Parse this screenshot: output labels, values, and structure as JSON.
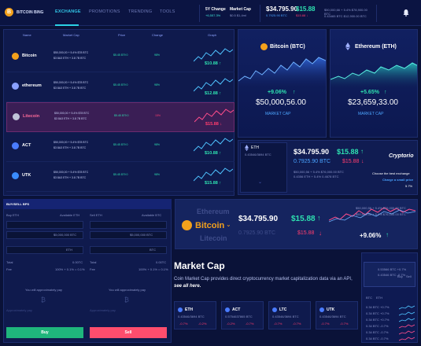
{
  "brand": {
    "name": "BITCOIN BING"
  },
  "nav": [
    "EXCHANGE",
    "PROMOTIONS",
    "TRENDING",
    "TOOLS"
  ],
  "ticker": {
    "change_label": "5Y Change",
    "change_value": "+6,557.3%",
    "mcap_label": "Market Cap",
    "mcap_value": "$0.5 $1,4ml",
    "t1_price": "$34.795.90",
    "t1_sub": "0.7925.90 BTC",
    "t2_price": "$15.88",
    "t2_arrow": "↑",
    "t2_sub": "$15.88 ↓",
    "t3_sub": "$50,000,66 + 5.4% $78,900.00 BTC",
    "t4_sub": "0.43465 BTC $12,900.00 BTC"
  },
  "table": {
    "headers": [
      "Name",
      "Market Cap",
      "Price",
      "Change",
      "Graph"
    ],
    "rows": [
      {
        "name": "Bitcoin",
        "cap1": "$50,000,00 + 5.4% $78 BTC",
        "cap2": "$3 8A3 ETH + 3.8 7B BTC",
        "price": "$5.45 879 0",
        "change": "98%",
        "value": "$10.88",
        "arrow": "↑",
        "color": "#f3a11c",
        "trend": "g"
      },
      {
        "name": "ethereum",
        "cap1": "$50,000,00 + 5.4% $78 BTC",
        "cap2": "$3 8A3 ETH + 3.8 7B BTC",
        "price": "$5.45 879 0",
        "change": "98%",
        "value": "$12.88",
        "arrow": "↑",
        "color": "#8aa0ff",
        "trend": "g"
      },
      {
        "name": "Litecoin",
        "cap1": "$50,000,00 + 5.4% $78 BTC",
        "cap2": "$3 8A3 ETH + 3.8 7B BTC",
        "price": "$5.45 879 0",
        "change": "15%",
        "value": "$15.88",
        "arrow": "↓",
        "color": "#c0c4d8",
        "trend": "r"
      },
      {
        "name": "ACT",
        "cap1": "$50,000,00 + 5.4% $78 BTC",
        "cap2": "$3 8A3 ETH + 3.8 7B BTC",
        "price": "$5.45 879 0",
        "change": "98%",
        "value": "$10.88",
        "arrow": "↑",
        "color": "#4a7cff",
        "trend": "g"
      },
      {
        "name": "UTK",
        "cap1": "$50,000,00 + 5.4% $78 BTC",
        "cap2": "$3 8A3 ETH + 3.8 7B BTC",
        "price": "$5.45 879 0",
        "change": "98%",
        "value": "$15.88",
        "arrow": "↑",
        "color": "#3a8cff",
        "trend": "g"
      }
    ]
  },
  "cards": {
    "btc": {
      "title": "Bitcoin (BTC)",
      "change": "+9.06%",
      "change_arrow": "↑",
      "value": "$50,000,56.00",
      "label": "MARKET CAP"
    },
    "eth": {
      "title": "Ethereum (ETH)",
      "change": "+5.65%",
      "change_arrow": "↑",
      "value": "$23,659,33.00",
      "label": "MARKET CAP"
    }
  },
  "crypto_panel": {
    "coin": "ETH",
    "sub": "0.43546/3694 BTC",
    "price": "$34.795.90",
    "price2": "$15.88",
    "arrow1": "↑",
    "btc": "0.7925.90 BTC",
    "price3": "$15.88",
    "arrow2": "↓",
    "lines": [
      "$50,000,56 + 5.4% $76,000.00 BTC",
      "0.4356 ETH + 5.4% 0.4678 BTC"
    ],
    "brand": "Cryptorio",
    "choose": "Choose the best exchange",
    "fee": "Charge a small price",
    "fee_val": "5.7%"
  },
  "buysell": {
    "title": "BUY/SELL BPS",
    "buy_label": "Buy ETH",
    "sell_label": "Sell ETH",
    "avail_buy": "Available ETH",
    "avail_sell": "Available BTC",
    "amount": "0",
    "price_val": "$5,000,000 BTC",
    "eth": "ETH",
    "btc": "BTC",
    "total": "Total",
    "total_val": "0.00TC",
    "fee": "Fee",
    "fee_val": "100% + 0.1% = 0.1%",
    "pay": "You will approximately pay",
    "approx": "Approximately pay",
    "buy_btn": "Buy",
    "sell_btn": "Sell"
  },
  "feature": {
    "tab1": "Ethereum",
    "tab2": "Litecoin",
    "coin": "Bitcoin",
    "price": "$34.795.90",
    "price2": "$15.88",
    "arrow1": "↑",
    "btc": "0.7925.90 BTC",
    "price3": "$15.88",
    "arrow2": "↓",
    "change": "+9.06%",
    "change_arrow": "↑",
    "lines": [
      "$50,000,56 + 5.4% $76,000.00 BTC",
      "$50,000,56 + 5.4% $76,000.00 BTC"
    ]
  },
  "market": {
    "title": "Market Cap",
    "desc": "Coin Market Cap provides direct cryptocurrency market capitalization data via an API,",
    "link": "see all here.",
    "cards": [
      {
        "name": "ETH",
        "sub": "0.43546/3694 BTC",
        "a": "-0.7%",
        "b": "-0.2%"
      },
      {
        "name": "ACT",
        "sub": "0.5754637865 BTC",
        "a": "-0.2%",
        "b": "-0.7%"
      },
      {
        "name": "LTC",
        "sub": "0.43546/3694 BTC",
        "a": "-0.7%",
        "b": "-0.7%"
      },
      {
        "name": "UTK",
        "sub": "0.43546/3694 BTC",
        "a": "-0.7%",
        "b": "-0.7%"
      }
    ]
  },
  "sidebar": {
    "top_sub": "0.53566 BTC +0.7%",
    "top_sub2": "0.43546 BTC -0.7%",
    "buy": "Buy",
    "sell": "Sell",
    "tab1": "BTC",
    "tab2": "ETH",
    "rows": [
      "0.34 BTC +0.7%",
      "0.34 BTC +0.7%",
      "0.34 BTC +0.7%",
      "0.34 BTC -0.7%",
      "0.34 BTC -0.7%",
      "0.34 BTC -0.7%"
    ]
  }
}
